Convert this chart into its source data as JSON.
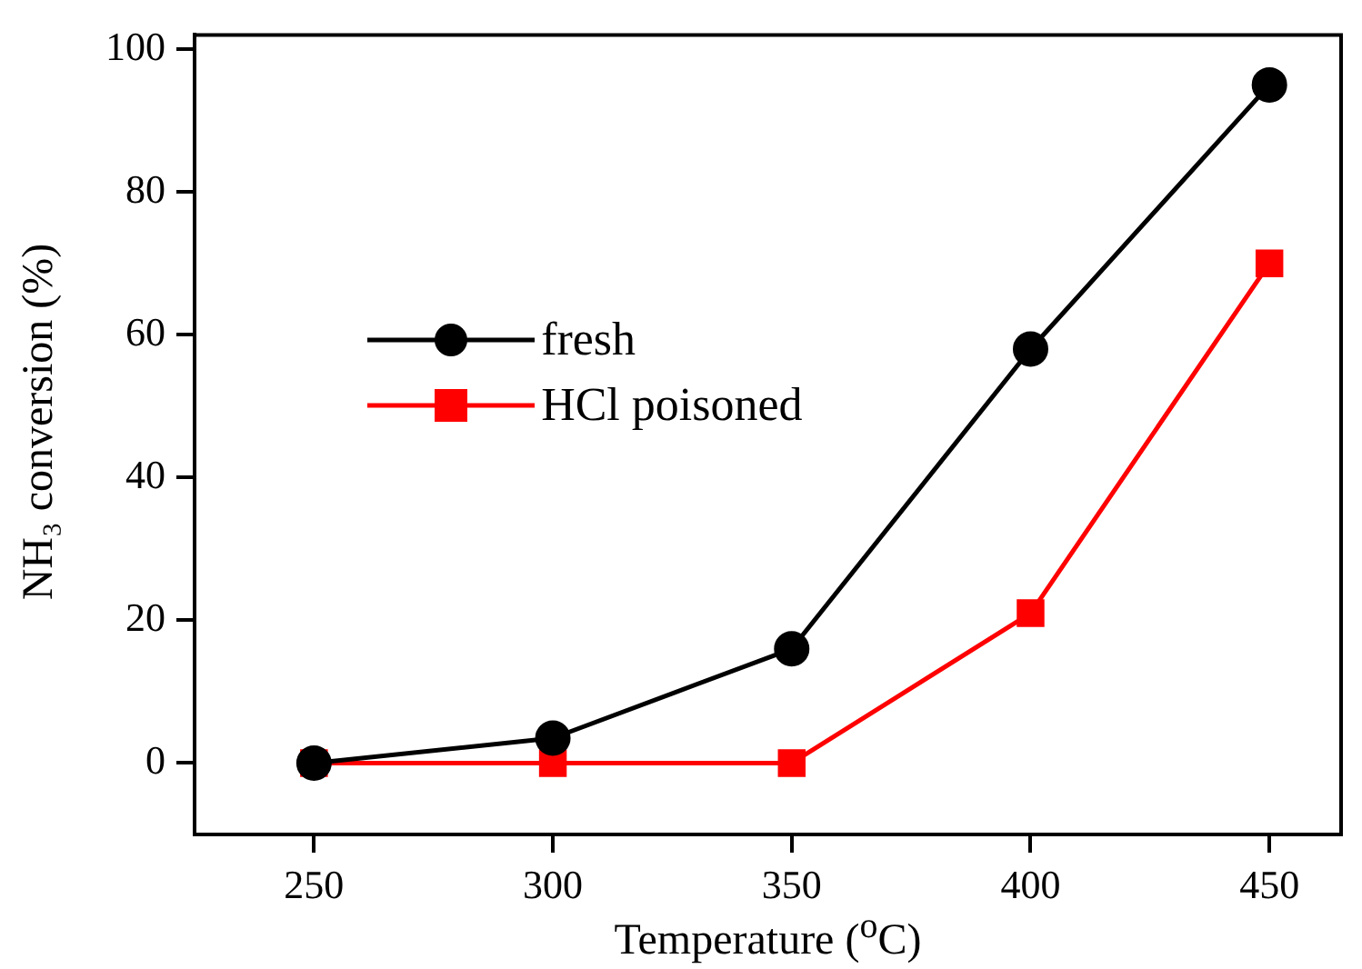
{
  "chart_data": {
    "type": "line",
    "xlabel": "Temperature ($^{o}$C)",
    "ylabel": "NH₃ conversion (%)",
    "x": [
      250,
      300,
      350,
      400,
      450
    ],
    "series": [
      {
        "name": "fresh",
        "color": "#000000",
        "marker": "circle",
        "values": [
          0,
          3.5,
          16,
          58,
          95
        ]
      },
      {
        "name": "HCl poisoned",
        "color": "#ff0000",
        "marker": "square",
        "values": [
          0,
          0,
          0,
          21,
          70
        ]
      }
    ],
    "xlim": [
      225,
      465
    ],
    "xticks": [
      250,
      300,
      350,
      400,
      450
    ],
    "ylim": [
      -10,
      102
    ],
    "yticks": [
      0,
      20,
      40,
      60,
      80,
      100
    ],
    "grid": false,
    "legend": "left",
    "line_style": "solid"
  }
}
